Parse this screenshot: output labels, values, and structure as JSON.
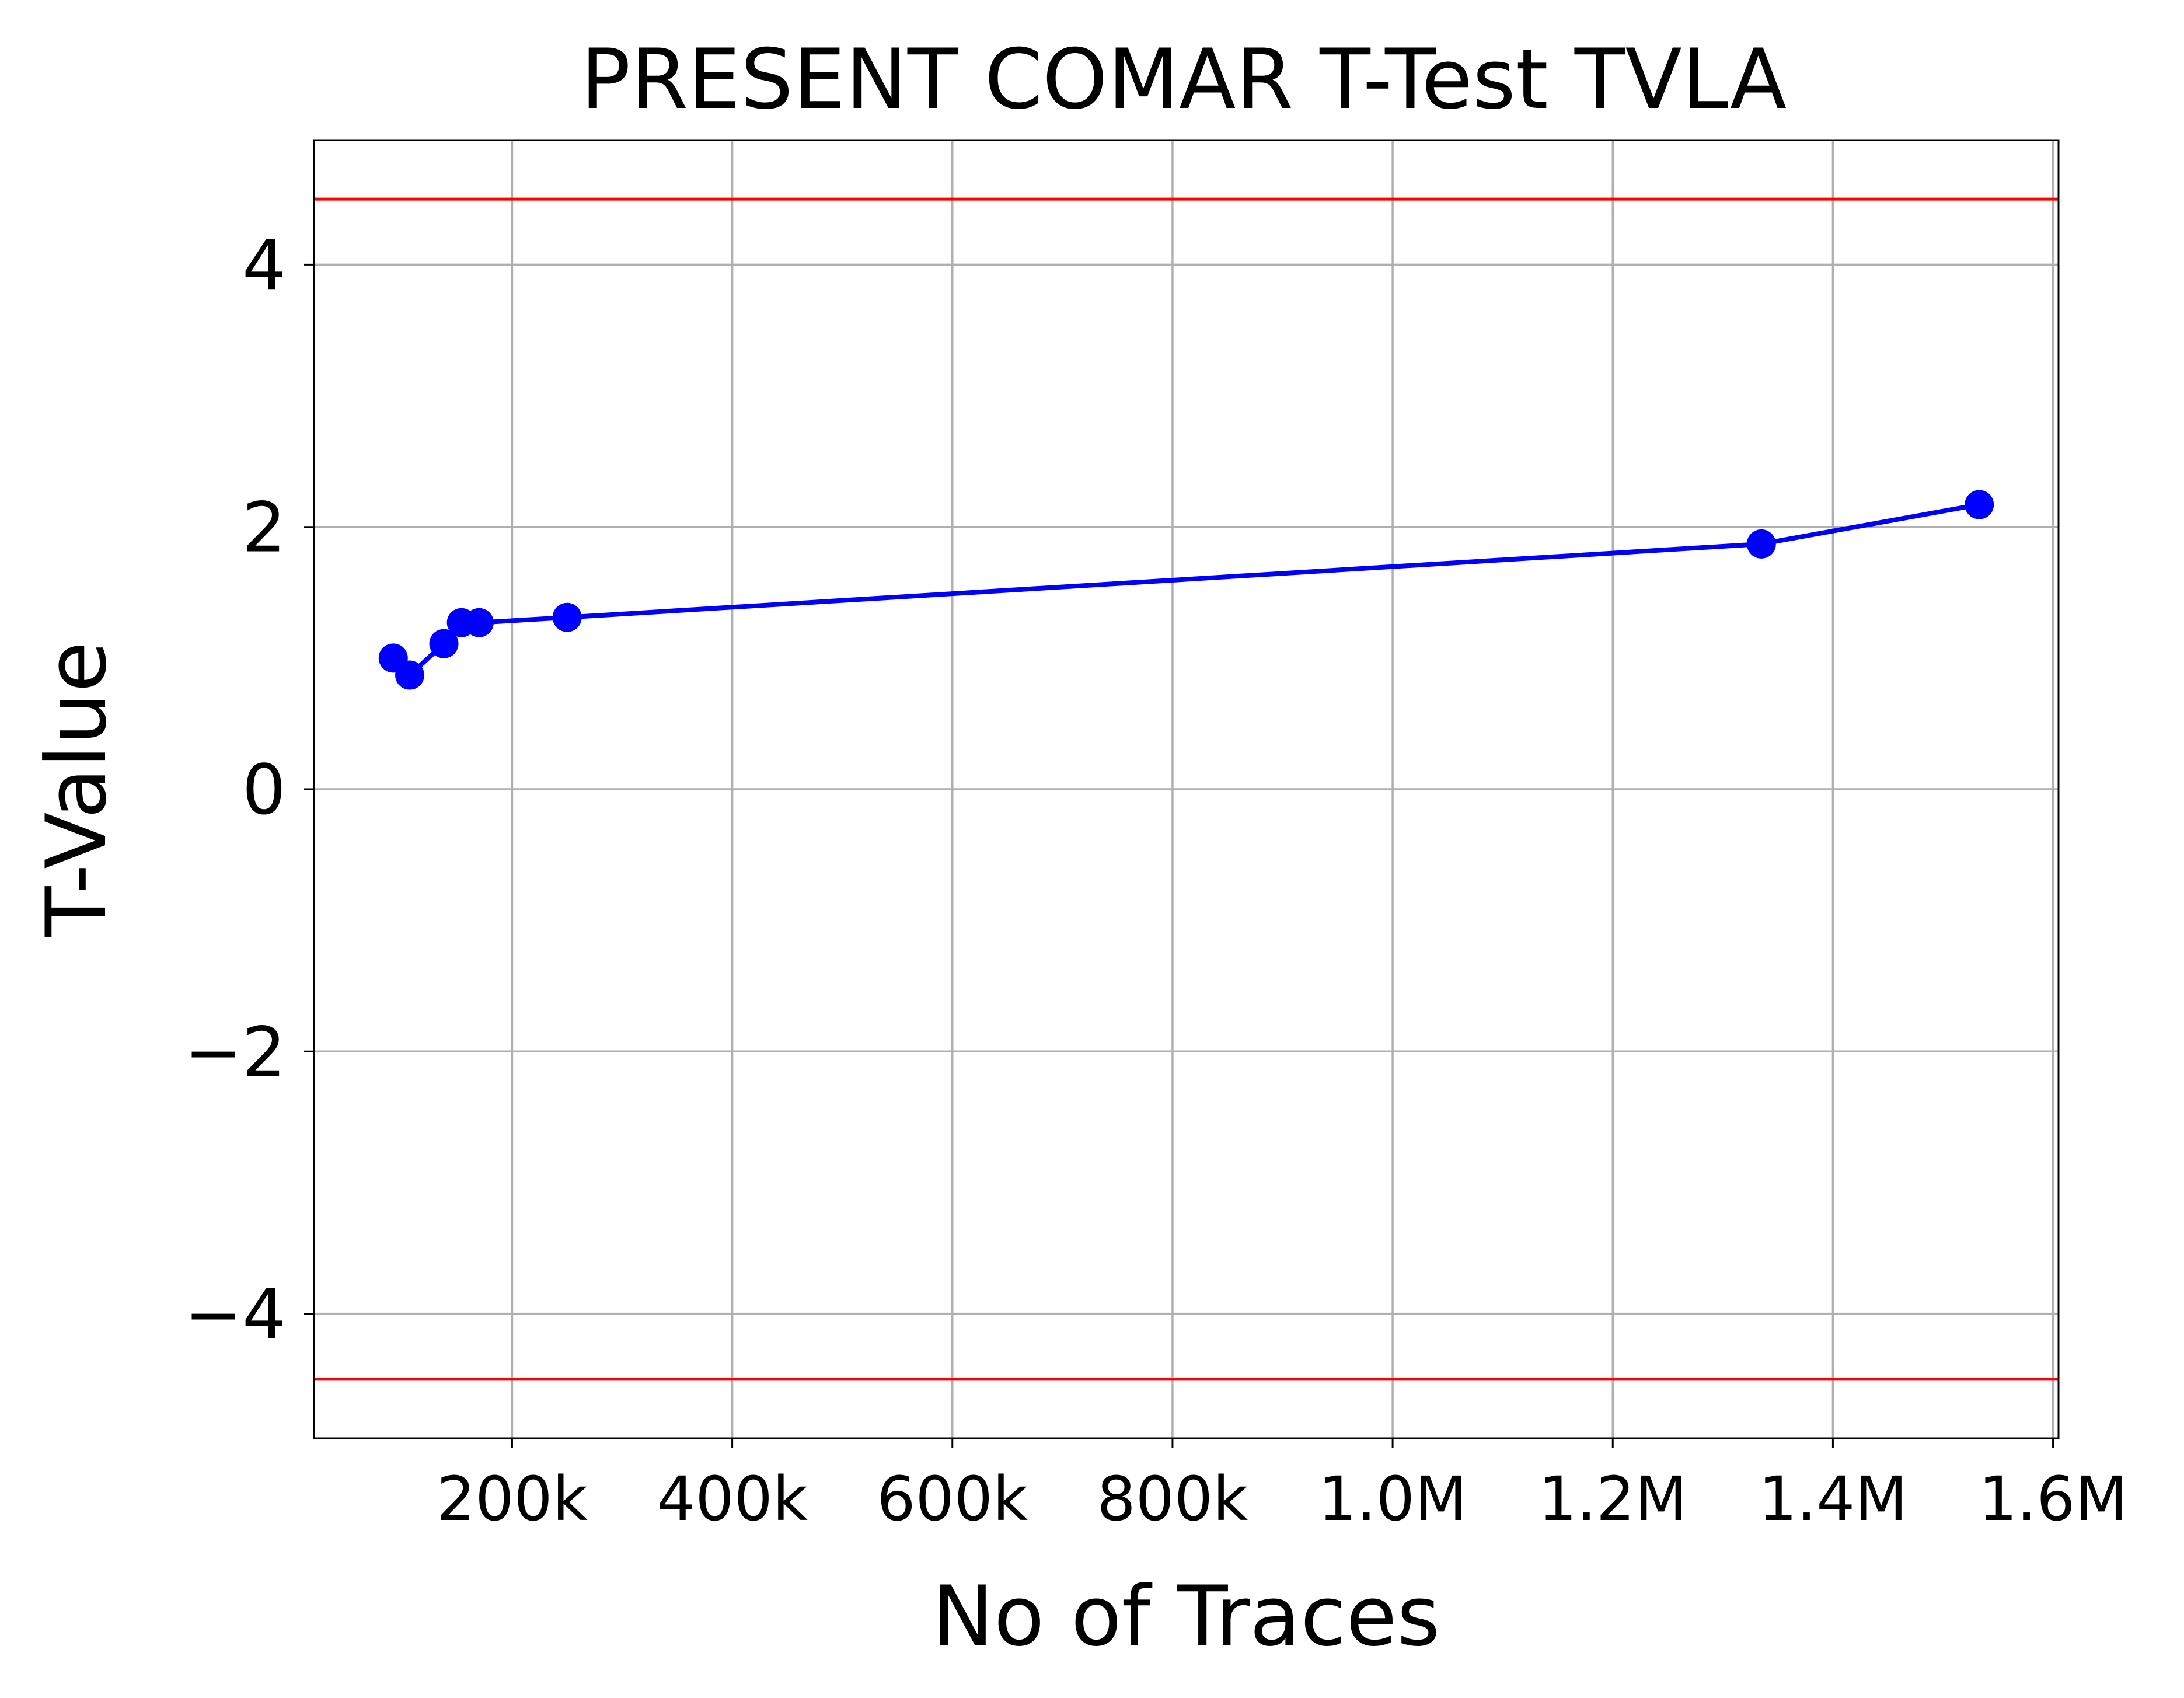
{
  "chart_data": {
    "type": "line",
    "title": "PRESENT COMAR T-Test TVLA",
    "xlabel": "No of Traces",
    "ylabel": "T-Value",
    "xlim": [
      20000,
      1605000
    ],
    "ylim": [
      -4.95,
      4.95
    ],
    "grid": true,
    "x_ticks": [
      {
        "value": 200000,
        "label": "200k"
      },
      {
        "value": 400000,
        "label": "400k"
      },
      {
        "value": 600000,
        "label": "600k"
      },
      {
        "value": 800000,
        "label": "800k"
      },
      {
        "value": 1000000,
        "label": "1.0M"
      },
      {
        "value": 1200000,
        "label": "1.2M"
      },
      {
        "value": 1400000,
        "label": "1.4M"
      },
      {
        "value": 1600000,
        "label": "1.6M"
      }
    ],
    "y_ticks": [
      {
        "value": -4,
        "label": "−4"
      },
      {
        "value": -2,
        "label": "−2"
      },
      {
        "value": 0,
        "label": "0"
      },
      {
        "value": 2,
        "label": "2"
      },
      {
        "value": 4,
        "label": "4"
      }
    ],
    "thresholds": [
      {
        "value": 4.5,
        "color": "#ff0000"
      },
      {
        "value": -4.5,
        "color": "#ff0000"
      }
    ],
    "series": [
      {
        "color": "#0000ff",
        "x": [
          92000,
          107000,
          138000,
          154000,
          170000,
          250000,
          1335000,
          1533000
        ],
        "y": [
          1.0,
          0.87,
          1.11,
          1.27,
          1.27,
          1.31,
          1.87,
          2.17
        ]
      }
    ]
  }
}
